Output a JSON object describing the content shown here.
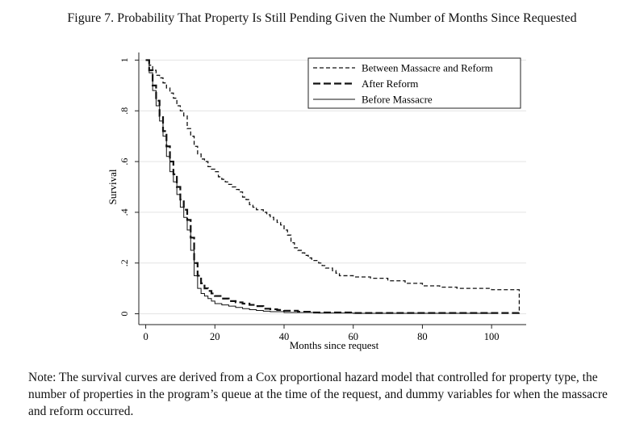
{
  "figure_title": "Figure 7. Probability That Property Is Still Pending Given the Number of Months Since Requested",
  "note": "Note: The survival curves are derived from a Cox proportional hazard model that controlled for property type, the number of properties in the program’s queue at the time of the request, and dummy variables for when the massacre and reform occurred.",
  "chart_data": {
    "type": "line",
    "step": true,
    "xlabel": "Months since request",
    "ylabel": "Survival",
    "xlim": [
      -2,
      110
    ],
    "ylim": [
      -0.03,
      1.03
    ],
    "xticks": [
      0,
      20,
      40,
      60,
      80,
      100
    ],
    "xtick_labels": [
      "0",
      "20",
      "40",
      "60",
      "80",
      "100"
    ],
    "yticks": [
      0,
      0.2,
      0.4,
      0.6,
      0.8,
      1
    ],
    "ytick_labels": [
      "0",
      ".2",
      ".4",
      ".6",
      ".8",
      "1"
    ],
    "grid": true,
    "legend_position": "top-right",
    "series": [
      {
        "name": "Between Massacre and Reform",
        "style": "short-dash",
        "color": "#111111",
        "x": [
          0,
          1,
          2,
          3,
          4,
          5,
          6,
          7,
          8,
          9,
          10,
          11,
          12,
          13,
          14,
          15,
          16,
          17,
          18,
          19,
          20,
          21,
          22,
          23,
          24,
          25,
          26,
          27,
          28,
          29,
          30,
          31,
          32,
          33,
          34,
          35,
          36,
          37,
          38,
          39,
          40,
          41,
          42,
          43,
          44,
          45,
          46,
          47,
          48,
          49,
          50,
          51,
          52,
          53,
          54,
          55,
          56,
          57,
          60,
          65,
          70,
          75,
          80,
          85,
          90,
          95,
          100,
          108,
          108
        ],
        "values": [
          1.0,
          0.98,
          0.96,
          0.94,
          0.93,
          0.91,
          0.89,
          0.87,
          0.85,
          0.82,
          0.8,
          0.78,
          0.73,
          0.7,
          0.66,
          0.63,
          0.61,
          0.6,
          0.58,
          0.57,
          0.56,
          0.54,
          0.53,
          0.52,
          0.51,
          0.5,
          0.49,
          0.48,
          0.46,
          0.45,
          0.43,
          0.42,
          0.41,
          0.41,
          0.4,
          0.39,
          0.38,
          0.37,
          0.36,
          0.35,
          0.33,
          0.31,
          0.28,
          0.26,
          0.25,
          0.24,
          0.23,
          0.22,
          0.21,
          0.21,
          0.2,
          0.19,
          0.18,
          0.18,
          0.17,
          0.16,
          0.15,
          0.15,
          0.145,
          0.14,
          0.13,
          0.12,
          0.11,
          0.105,
          0.1,
          0.1,
          0.095,
          0.09,
          0.0
        ]
      },
      {
        "name": "After Reform",
        "style": "long-dash",
        "color": "#111111",
        "x": [
          0,
          1,
          2,
          3,
          4,
          5,
          6,
          7,
          8,
          9,
          10,
          11,
          12,
          13,
          14,
          15,
          16,
          17,
          18,
          19,
          20,
          22,
          24,
          26,
          28,
          30,
          32,
          34,
          36,
          38,
          40,
          44,
          48,
          60,
          80,
          100,
          108,
          108
        ],
        "values": [
          1.0,
          0.96,
          0.9,
          0.84,
          0.78,
          0.72,
          0.66,
          0.6,
          0.55,
          0.5,
          0.45,
          0.41,
          0.37,
          0.3,
          0.2,
          0.15,
          0.12,
          0.1,
          0.09,
          0.08,
          0.07,
          0.06,
          0.05,
          0.045,
          0.04,
          0.035,
          0.03,
          0.02,
          0.018,
          0.015,
          0.012,
          0.008,
          0.005,
          0.003,
          0.003,
          0.003,
          0.003,
          0.01
        ]
      },
      {
        "name": "Before Massacre",
        "style": "solid",
        "color": "#111111",
        "x": [
          0,
          1,
          2,
          3,
          4,
          5,
          6,
          7,
          8,
          9,
          10,
          11,
          12,
          13,
          14,
          15,
          16,
          17,
          18,
          19,
          20,
          22,
          24,
          26,
          28,
          30,
          32,
          34,
          36,
          40,
          50,
          60,
          80,
          100
        ],
        "values": [
          1.0,
          0.95,
          0.88,
          0.82,
          0.76,
          0.7,
          0.62,
          0.56,
          0.52,
          0.47,
          0.42,
          0.38,
          0.33,
          0.25,
          0.15,
          0.1,
          0.08,
          0.07,
          0.06,
          0.05,
          0.04,
          0.035,
          0.03,
          0.025,
          0.02,
          0.016,
          0.013,
          0.01,
          0.008,
          0.005,
          0.003,
          0.002,
          0.002,
          0.002
        ]
      }
    ]
  }
}
